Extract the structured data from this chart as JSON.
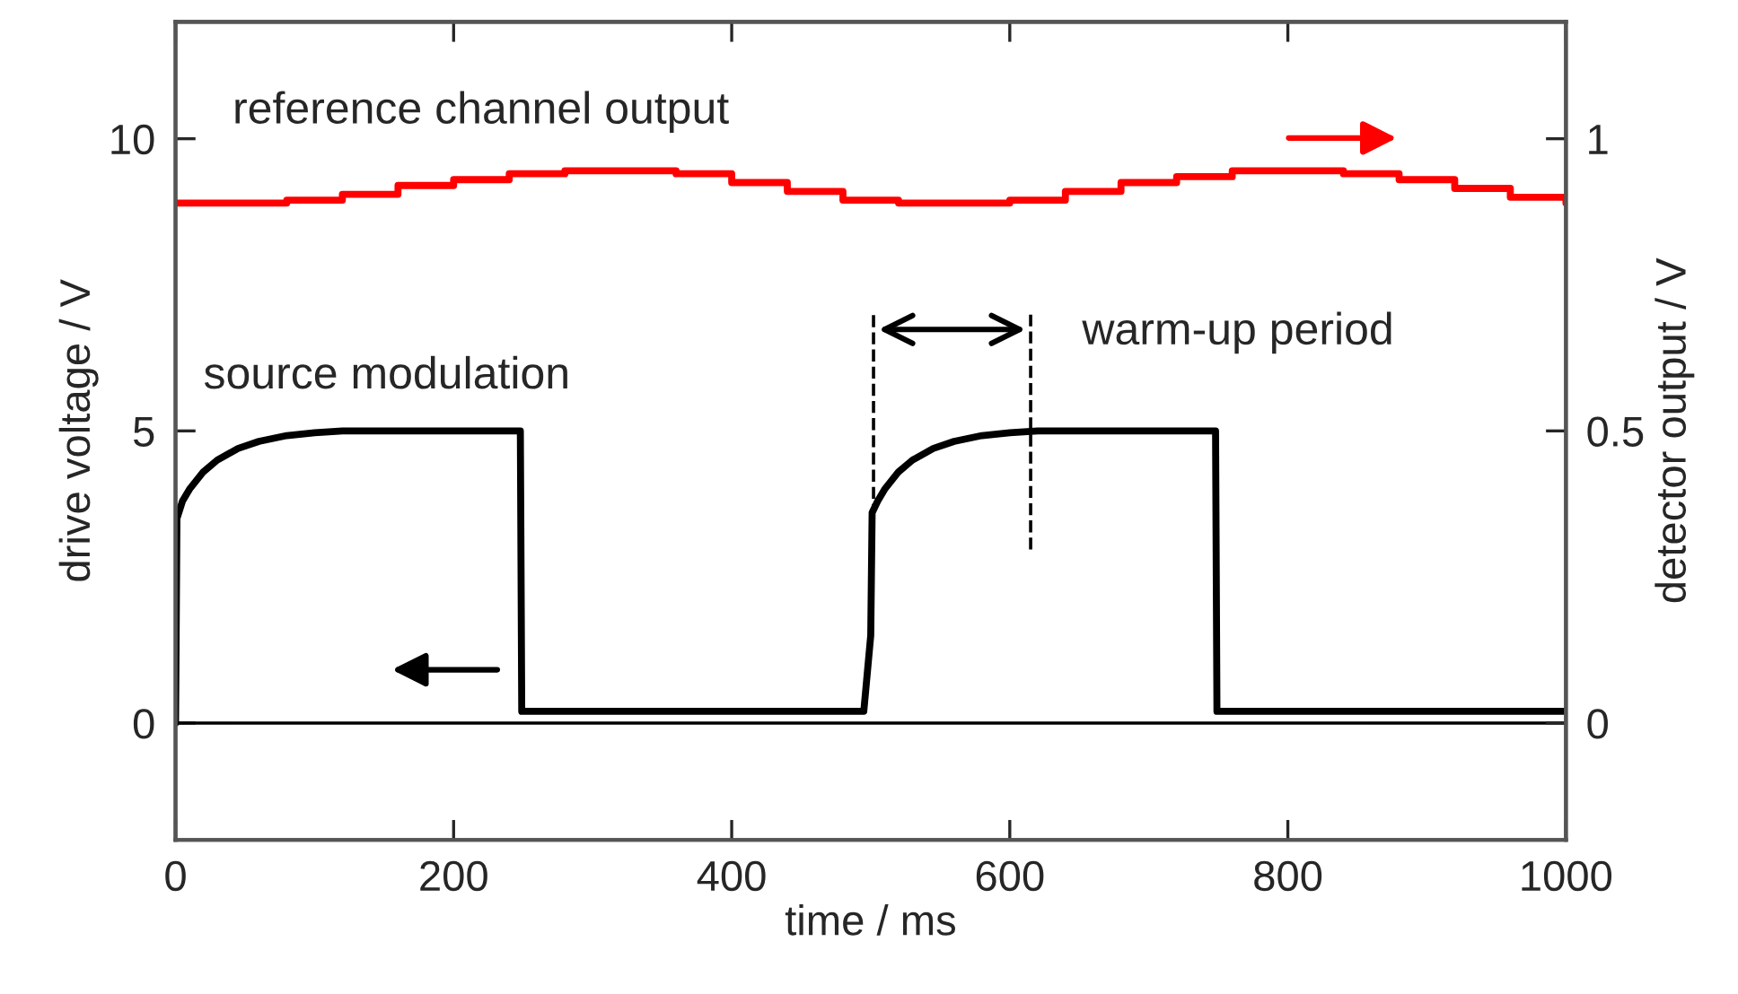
{
  "chart_data": {
    "type": "line",
    "xlabel": "time / ms",
    "ylabel": "drive voltage / V",
    "y2label": "detector output / V",
    "xlim": [
      0,
      1000
    ],
    "xticks": [
      0,
      200,
      400,
      600,
      800,
      1000
    ],
    "ylim": [
      -2,
      12
    ],
    "yticks": [
      0,
      5,
      10
    ],
    "y2lim": [
      -0.2,
      1.2
    ],
    "y2ticks": [
      0,
      0.5,
      1
    ],
    "grid": false,
    "legend": false,
    "marker": "none",
    "line_style": "solid",
    "ref_lines": [
      {
        "axis": "y",
        "value": 0,
        "color": "#000000"
      }
    ],
    "series": [
      {
        "axis": "y",
        "color": "#000000",
        "x": [
          0,
          1,
          5,
          10,
          20,
          30,
          45,
          60,
          80,
          100,
          120,
          248,
          249,
          300,
          400,
          480,
          495,
          500,
          501,
          505,
          510,
          520,
          530,
          545,
          560,
          580,
          600,
          620,
          748,
          749,
          800,
          900,
          1000
        ],
        "values": [
          0,
          3.5,
          3.8,
          4.0,
          4.3,
          4.5,
          4.7,
          4.82,
          4.92,
          4.97,
          5.0,
          5.0,
          0.2,
          0.2,
          0.2,
          0.2,
          0.2,
          1.5,
          3.6,
          3.8,
          4.0,
          4.3,
          4.5,
          4.7,
          4.82,
          4.92,
          4.97,
          5.0,
          5.0,
          0.2,
          0.2,
          0.2,
          0.2
        ]
      },
      {
        "type": "step",
        "axis": "y2",
        "color": "#ff0000",
        "x": [
          0,
          40,
          80,
          120,
          160,
          200,
          240,
          280,
          320,
          360,
          400,
          440,
          480,
          520,
          560,
          600,
          640,
          680,
          720,
          760,
          800,
          840,
          880,
          920,
          960,
          1000
        ],
        "values": [
          0.89,
          0.89,
          0.895,
          0.905,
          0.92,
          0.93,
          0.94,
          0.945,
          0.945,
          0.94,
          0.925,
          0.91,
          0.895,
          0.89,
          0.89,
          0.895,
          0.91,
          0.925,
          0.935,
          0.945,
          0.945,
          0.94,
          0.93,
          0.915,
          0.9,
          0.89
        ]
      }
    ],
    "annotations": [
      "reference channel output",
      "source modulation",
      "warm-up period"
    ]
  }
}
